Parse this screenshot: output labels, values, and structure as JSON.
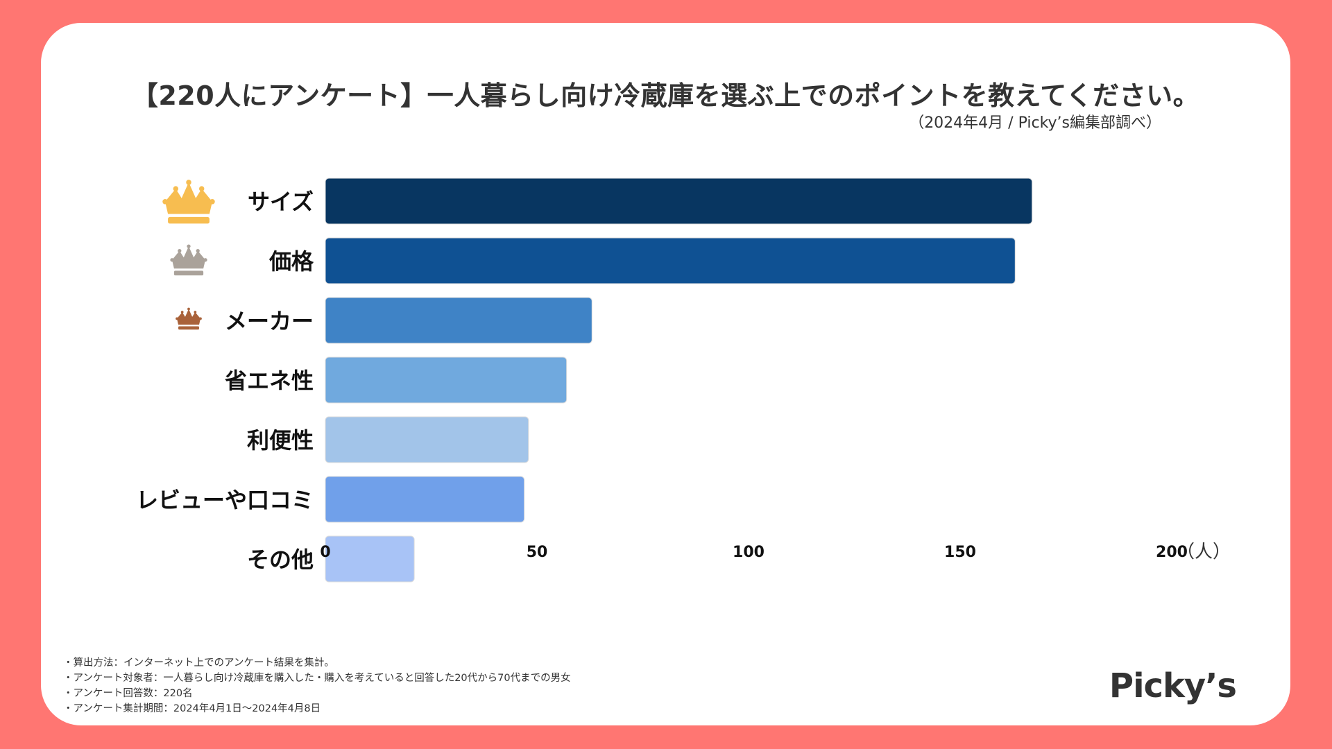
{
  "header": {
    "title": "【220人にアンケート】一人暮らし向け冷蔵庫を選ぶ上でのポイントを教えてください。",
    "subtitle": "（2024年4月 / Picky’s編集部調べ）"
  },
  "chart_data": {
    "type": "bar",
    "orientation": "horizontal",
    "categories": [
      "サイズ",
      "価格",
      "メーカー",
      "省エネ性",
      "利便性",
      "レビューや口コミ",
      "その他"
    ],
    "values": [
      167,
      163,
      63,
      57,
      48,
      47,
      21
    ],
    "xlim": [
      0,
      200
    ],
    "xticks": [
      0,
      50,
      100,
      150,
      200
    ],
    "x_unit_label": "（人）",
    "colors": [
      "#083661",
      "#0f5193",
      "#3f83c6",
      "#70a9de",
      "#a2c4e9",
      "#70a0ea",
      "#a8c3f6"
    ],
    "rank_icons": [
      "crown-gold-icon",
      "crown-silver-icon",
      "crown-bronze-icon"
    ],
    "rank_colors": [
      "#f7bd50",
      "#aaa29a",
      "#a9623a"
    ]
  },
  "footer": {
    "notes": [
      "・算出方法：インターネット上でのアンケート結果を集計。",
      "・アンケート対象者：一人暮らし向け冷蔵庫を購入した・購入を考えていると回答した20代から70代までの男女",
      "・アンケート回答数：220名",
      "・アンケート集計期間：2024年4月1日〜2024年4月8日"
    ],
    "logo": "Picky’s"
  }
}
